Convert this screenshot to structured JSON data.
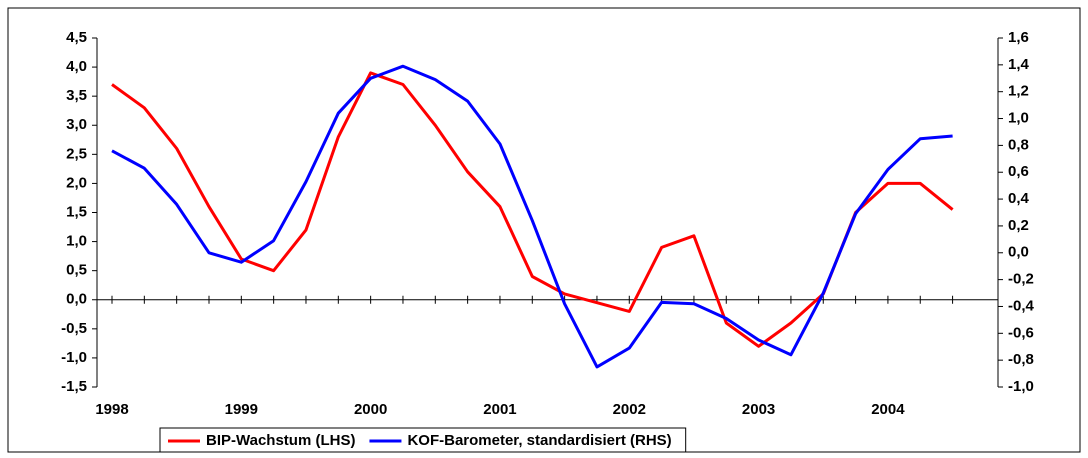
{
  "chart_data": {
    "type": "line",
    "categories": [
      "1998",
      null,
      null,
      null,
      "1999",
      null,
      null,
      null,
      "2000",
      null,
      null,
      null,
      "2001",
      null,
      null,
      null,
      "2002",
      null,
      null,
      null,
      "2003",
      null,
      null,
      null,
      "2004",
      null,
      null
    ],
    "series": [
      {
        "name": "BIP-Wachstum (LHS)",
        "color": "#ff0000",
        "axis": "y",
        "values": [
          3.7,
          3.3,
          2.6,
          1.6,
          0.7,
          0.5,
          1.2,
          2.8,
          3.9,
          3.7,
          3.0,
          2.2,
          1.6,
          0.4,
          0.1,
          -0.05,
          -0.2,
          0.9,
          1.1,
          -0.4,
          -0.8,
          -0.4,
          0.1,
          1.5,
          2.0,
          2.0,
          1.55
        ]
      },
      {
        "name": "KOF-Barometer, standardisiert (RHS)",
        "color": "#0000ff",
        "axis": "y2",
        "values": [
          0.76,
          0.63,
          0.36,
          0.0,
          -0.07,
          0.09,
          0.53,
          1.04,
          1.3,
          1.39,
          1.29,
          1.13,
          0.81,
          0.24,
          -0.38,
          -0.85,
          -0.71,
          -0.37,
          -0.38,
          -0.49,
          -0.65,
          -0.76,
          -0.3,
          0.29,
          0.62,
          0.85,
          0.87
        ]
      }
    ],
    "ylim": [
      -1.5,
      4.5
    ],
    "yticks": [
      {
        "value": -1.5,
        "label": "-1,5"
      },
      {
        "value": -1.0,
        "label": "-1,0"
      },
      {
        "value": -0.5,
        "label": "-0,5"
      },
      {
        "value": 0,
        "label": "0,0"
      },
      {
        "value": 0.5,
        "label": "0,5"
      },
      {
        "value": 1.0,
        "label": "1,0"
      },
      {
        "value": 1.5,
        "label": "1,5"
      },
      {
        "value": 2.0,
        "label": "2,0"
      },
      {
        "value": 2.5,
        "label": "2,5"
      },
      {
        "value": 3.0,
        "label": "3,0"
      },
      {
        "value": 3.5,
        "label": "3,5"
      },
      {
        "value": 4.0,
        "label": "4,0"
      },
      {
        "value": 4.5,
        "label": "4,5"
      }
    ],
    "y2lim": [
      -1.0,
      1.6
    ],
    "y2ticks": [
      {
        "value": -1.0,
        "label": "-1,0"
      },
      {
        "value": -0.8,
        "label": "-0,8"
      },
      {
        "value": -0.6,
        "label": "-0,6"
      },
      {
        "value": -0.4,
        "label": "-0,4"
      },
      {
        "value": -0.2,
        "label": "-0,2"
      },
      {
        "value": 0,
        "label": "0,0"
      },
      {
        "value": 0.2,
        "label": "0,2"
      },
      {
        "value": 0.4,
        "label": "0,4"
      },
      {
        "value": 0.6,
        "label": "0,6"
      },
      {
        "value": 0.8,
        "label": "0,8"
      },
      {
        "value": 1.0,
        "label": "1,0"
      },
      {
        "value": 1.2,
        "label": "1,2"
      },
      {
        "value": 1.4,
        "label": "1,4"
      },
      {
        "value": 1.6,
        "label": "1,6"
      }
    ],
    "legend": "bottom"
  }
}
